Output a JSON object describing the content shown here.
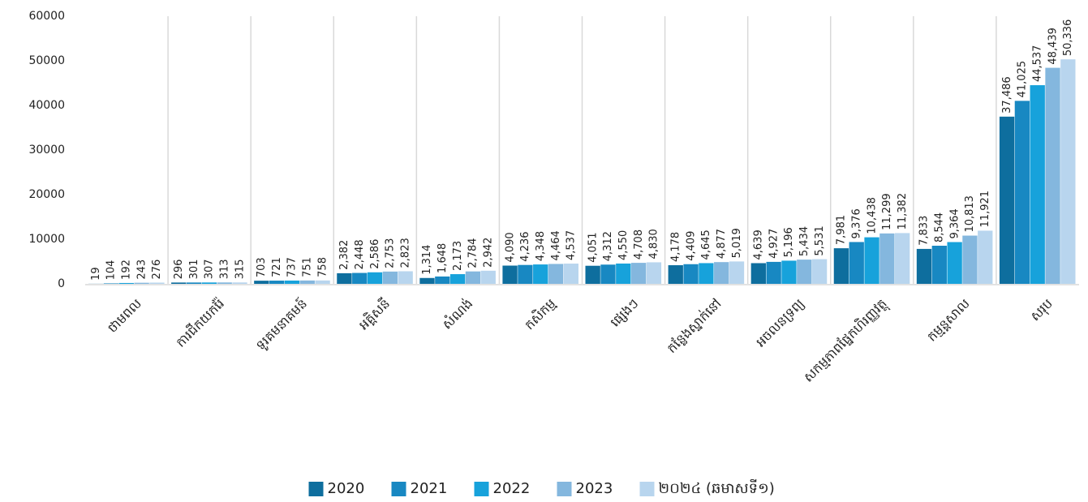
{
  "chart_data": {
    "type": "bar",
    "categories": [
      "ថាមពល",
      "ការជីកយករ៉ែ",
      "ទូរគមនាគមន៍",
      "អគ្គិសនី",
      "សំណង់",
      "កសិកម្ម",
      "ផ្សេងៗ",
      "កន្លែងស្នាក់នៅ",
      "អចលនទ្រព្យ",
      "សកម្មភាពផ្នែកហិរញ្ញវត្ថុ",
      "កម្មន្តសាល",
      "សរុប"
    ],
    "series": [
      {
        "name": "2020",
        "color": "#0e6e9e",
        "values": [
          19,
          296,
          703,
          2382,
          1314,
          4090,
          4051,
          4178,
          4639,
          7981,
          7833,
          37486
        ],
        "value_labels": [
          "19",
          "296",
          "703",
          "2,382",
          "1,314",
          "4,090",
          "4,051",
          "4,178",
          "4,639",
          "7,981",
          "7,833",
          "37,486"
        ]
      },
      {
        "name": "2021",
        "color": "#1888c2",
        "values": [
          104,
          301,
          721,
          2448,
          1648,
          4236,
          4312,
          4409,
          4927,
          9376,
          8544,
          41025
        ],
        "value_labels": [
          "104",
          "301",
          "721",
          "2,448",
          "1,648",
          "4,236",
          "4,312",
          "4,409",
          "4,927",
          "9,376",
          "8,544",
          "41,025"
        ]
      },
      {
        "name": "2022",
        "color": "#17a2db",
        "values": [
          192,
          307,
          737,
          2586,
          2173,
          4348,
          4550,
          4645,
          5196,
          10438,
          9364,
          44537
        ],
        "value_labels": [
          "192",
          "307",
          "737",
          "2,586",
          "2,173",
          "4,348",
          "4,550",
          "4,645",
          "5,196",
          "10,438",
          "9,364",
          "44,537"
        ]
      },
      {
        "name": "2023",
        "color": "#84b7de",
        "values": [
          243,
          313,
          751,
          2753,
          2784,
          4464,
          4708,
          4877,
          5434,
          11299,
          10813,
          48439
        ],
        "value_labels": [
          "243",
          "313",
          "751",
          "2,753",
          "2,784",
          "4,464",
          "4,708",
          "4,877",
          "5,434",
          "11,299",
          "10,813",
          "48,439"
        ]
      },
      {
        "name": "២០២៤ (ឆមាសទី១)",
        "color": "#b8d5ee",
        "values": [
          276,
          315,
          758,
          2823,
          2942,
          4537,
          4830,
          5019,
          5531,
          11382,
          11921,
          50336
        ],
        "value_labels": [
          "276",
          "315",
          "758",
          "2,823",
          "2,942",
          "4,537",
          "4,830",
          "5,019",
          "5,531",
          "11,382",
          "11,921",
          "50,336"
        ]
      }
    ],
    "ylim": [
      0,
      60000
    ],
    "yticks": [
      0,
      10000,
      20000,
      30000,
      40000,
      50000,
      60000
    ],
    "legend": "bottom"
  }
}
